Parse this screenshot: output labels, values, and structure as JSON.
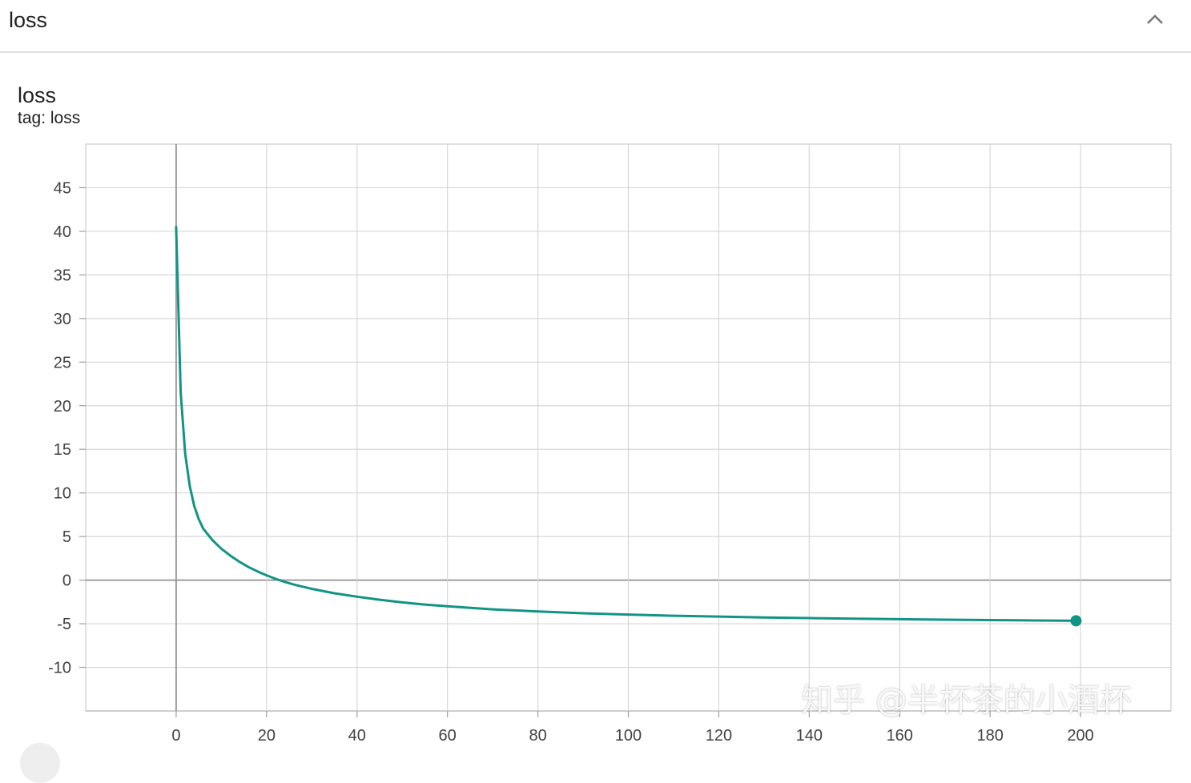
{
  "header": {
    "title": "loss"
  },
  "card": {
    "title": "loss",
    "tag": "tag: loss"
  },
  "watermark": "知乎 @半杯茶的小酒杯",
  "colors": {
    "line": "#129484",
    "grid": "#d6d6d6",
    "axis": "#9e9e9e"
  },
  "icons": {
    "collapse": "chevron-up-icon"
  },
  "chart_data": {
    "type": "line",
    "title": "loss",
    "xlabel": "",
    "ylabel": "",
    "xlim": [
      -20,
      220
    ],
    "ylim": [
      -15,
      50
    ],
    "xticks": [
      0,
      20,
      40,
      60,
      80,
      100,
      120,
      140,
      160,
      180,
      200
    ],
    "yticks": [
      -10,
      -5,
      0,
      5,
      10,
      15,
      20,
      25,
      30,
      35,
      40,
      45
    ],
    "grid": true,
    "series": [
      {
        "x": [
          0,
          1,
          2,
          3,
          4,
          5,
          6,
          8,
          10,
          12,
          14,
          16,
          18,
          20,
          22,
          24,
          26,
          28,
          30,
          35,
          40,
          45,
          50,
          55,
          60,
          70,
          80,
          90,
          100,
          110,
          120,
          130,
          140,
          150,
          160,
          170,
          180,
          190,
          199
        ],
        "y": [
          40.5,
          21.5,
          14.5,
          10.8,
          8.5,
          7.0,
          5.9,
          4.6,
          3.6,
          2.8,
          2.1,
          1.5,
          1.0,
          0.55,
          0.15,
          -0.2,
          -0.5,
          -0.75,
          -1.0,
          -1.5,
          -1.9,
          -2.25,
          -2.55,
          -2.8,
          -3.0,
          -3.35,
          -3.6,
          -3.8,
          -3.95,
          -4.08,
          -4.18,
          -4.28,
          -4.35,
          -4.42,
          -4.48,
          -4.53,
          -4.58,
          -4.63,
          -4.66
        ]
      }
    ],
    "last_point_marker": true
  }
}
